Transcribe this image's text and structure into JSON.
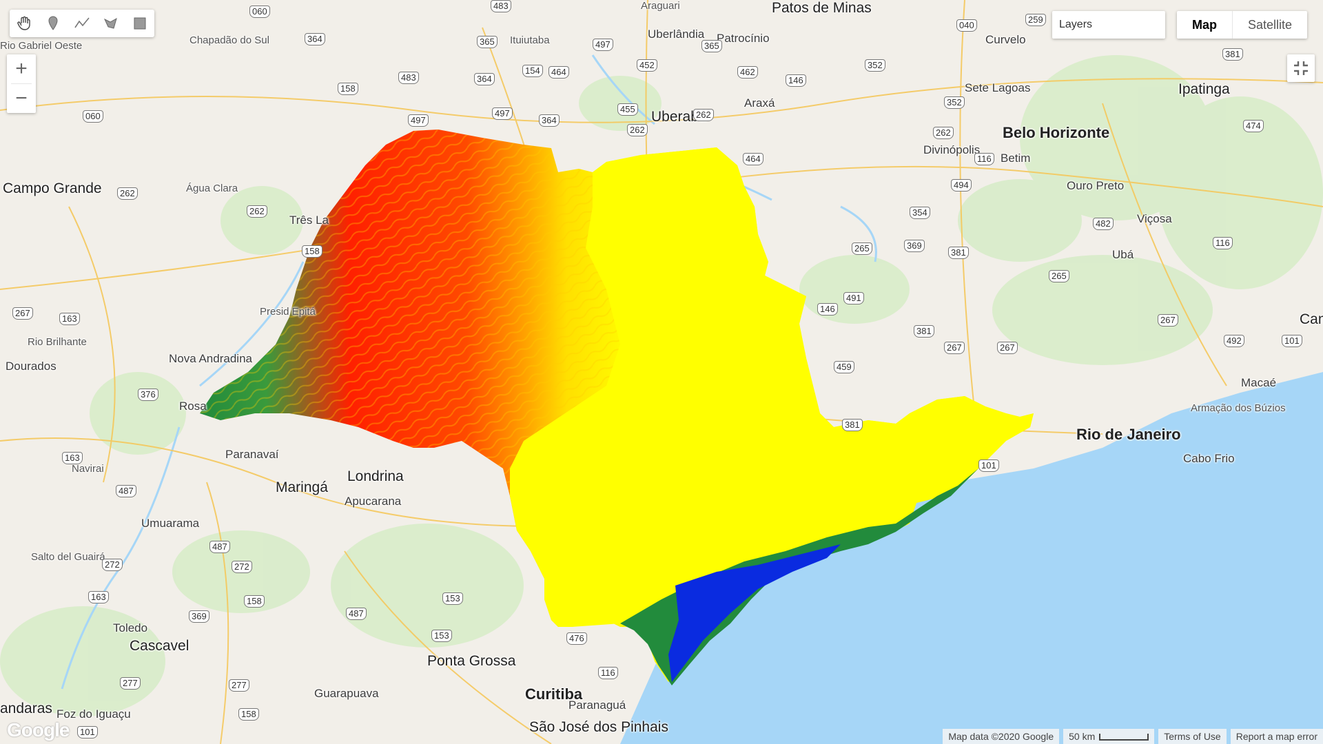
{
  "toolbar": {
    "tools": [
      {
        "name": "pan",
        "icon": "hand-icon"
      },
      {
        "name": "point",
        "icon": "marker-icon"
      },
      {
        "name": "line",
        "icon": "line-icon"
      },
      {
        "name": "polygon",
        "icon": "polygon-icon"
      },
      {
        "name": "rectangle",
        "icon": "rectangle-icon"
      }
    ]
  },
  "zoom": {
    "in": "+",
    "out": "−"
  },
  "layers": {
    "label": "Layers"
  },
  "maptype": {
    "map": "Map",
    "satellite": "Satellite",
    "active": "Map"
  },
  "footer": {
    "attribution": "Map data ©2020 Google",
    "scale": "50 km",
    "terms": "Terms of Use",
    "report": "Report a map error"
  },
  "logo": "Google",
  "colors": {
    "water": "#a6d6f7",
    "land": "#f2efe9",
    "veg": "#d8ecc9",
    "elev_low": "#228b3c",
    "elev_mid": "#ff2000",
    "elev_high": "#ffff00",
    "coast_blue": "#0a2be0"
  },
  "places": [
    {
      "text": "Araguari"
    },
    {
      "text": "Patos de Minas"
    },
    {
      "text": "Uberlândia"
    },
    {
      "text": "Ituiutaba"
    },
    {
      "text": "Patrocínio"
    },
    {
      "text": "Curvelo"
    },
    {
      "text": "Chapadão do Sul"
    },
    {
      "text": "Sete Lagoas"
    },
    {
      "text": "Ipatinga"
    },
    {
      "text": "Uberaba"
    },
    {
      "text": "Araxá"
    },
    {
      "text": "Belo Horizonte"
    },
    {
      "text": "Divinópolis"
    },
    {
      "text": "Betim"
    },
    {
      "text": "Ouro Preto"
    },
    {
      "text": "Viçosa"
    },
    {
      "text": "Campo Grande"
    },
    {
      "text": "Água Clara"
    },
    {
      "text": "Três La"
    },
    {
      "text": "Ubá"
    },
    {
      "text": "Campos"
    },
    {
      "text": "Rio Brilhante"
    },
    {
      "text": "Nova Andradina"
    },
    {
      "text": "Dourados"
    },
    {
      "text": "Presid Epitá"
    },
    {
      "text": "Macaé"
    },
    {
      "text": "Armação dos Búzios"
    },
    {
      "text": "Rio de Janeiro"
    },
    {
      "text": "Cabo Frio"
    },
    {
      "text": "Rosa"
    },
    {
      "text": "Paranavaí"
    },
    {
      "text": "Navirai"
    },
    {
      "text": "Maringá"
    },
    {
      "text": "Londrina"
    },
    {
      "text": "Apucarana"
    },
    {
      "text": "Umuarama"
    },
    {
      "text": "Salto del Guairá"
    },
    {
      "text": "Toledo"
    },
    {
      "text": "Cascavel"
    },
    {
      "text": "Ponta Grossa"
    },
    {
      "text": "Guarapuava"
    },
    {
      "text": "Curitiba"
    },
    {
      "text": "Paranaguá"
    },
    {
      "text": "São José dos Pinhais"
    },
    {
      "text": "Foz do Iguaçu"
    },
    {
      "text": "andaras"
    },
    {
      "text": "Rio Gabriel Oeste"
    }
  ],
  "shields": [
    "483",
    "060",
    "364",
    "365",
    "365",
    "497",
    "154",
    "464",
    "452",
    "462",
    "146",
    "040",
    "259",
    "352",
    "381",
    "158",
    "483",
    "364",
    "497",
    "455",
    "262",
    "364",
    "497",
    "262",
    "464",
    "352",
    "474",
    "262",
    "116",
    "060",
    "262",
    "262",
    "494",
    "354",
    "482",
    "158",
    "265",
    "369",
    "381",
    "265",
    "116",
    "267",
    "163",
    "491",
    "146",
    "376",
    "381",
    "267",
    "267",
    "267",
    "492",
    "101",
    "459",
    "163",
    "381",
    "101",
    "487",
    "487",
    "272",
    "272",
    "158",
    "163",
    "369",
    "487",
    "153",
    "153",
    "476",
    "116",
    "277",
    "277",
    "158",
    "101"
  ]
}
